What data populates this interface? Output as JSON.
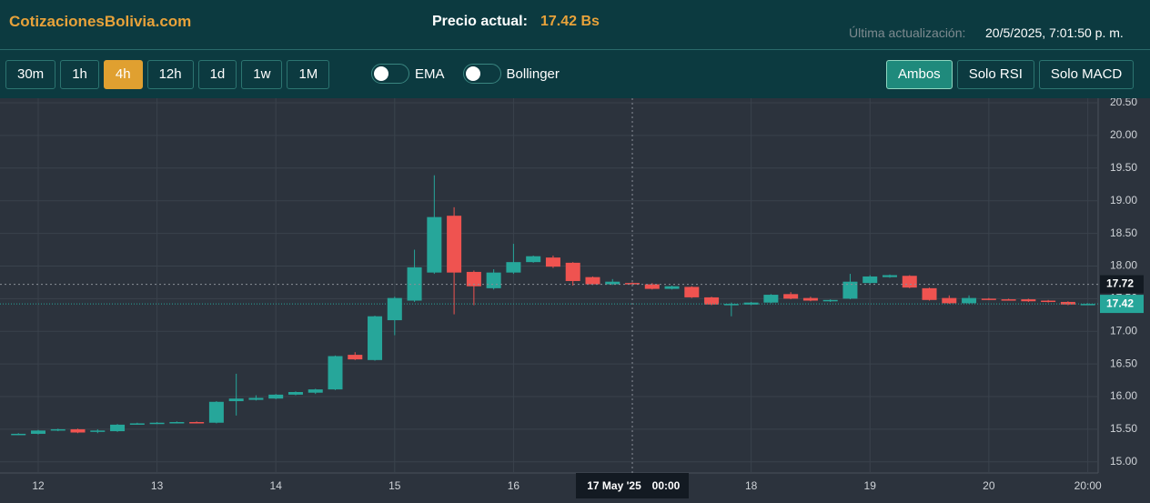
{
  "header": {
    "brand": "CotizacionesBolivia.com",
    "price_label": "Precio actual:",
    "price": "17.42 Bs",
    "update_label": "Última actualización:",
    "update_value": "20/5/2025, 7:01:50 p. m."
  },
  "toolbar": {
    "intervals": [
      "30m",
      "1h",
      "4h",
      "12h",
      "1d",
      "1w",
      "1M"
    ],
    "active_interval": "4h",
    "toggles": [
      "EMA",
      "Bollinger"
    ],
    "views": [
      "Ambos",
      "Solo RSI",
      "Solo MACD"
    ],
    "active_view": "Ambos"
  },
  "chart_data": {
    "type": "candlestick",
    "up_color": "#26a69a",
    "down_color": "#ef5350",
    "grid": true,
    "x": [
      "2025-05-11 20:00",
      "2025-05-12 00:00",
      "2025-05-12 04:00",
      "2025-05-12 08:00",
      "2025-05-12 12:00",
      "2025-05-12 16:00",
      "2025-05-12 20:00",
      "2025-05-13 00:00",
      "2025-05-13 04:00",
      "2025-05-13 08:00",
      "2025-05-13 12:00",
      "2025-05-13 16:00",
      "2025-05-13 20:00",
      "2025-05-14 00:00",
      "2025-05-14 04:00",
      "2025-05-14 08:00",
      "2025-05-14 12:00",
      "2025-05-14 16:00",
      "2025-05-14 20:00",
      "2025-05-15 00:00",
      "2025-05-15 04:00",
      "2025-05-15 08:00",
      "2025-05-15 12:00",
      "2025-05-15 16:00",
      "2025-05-15 20:00",
      "2025-05-16 00:00",
      "2025-05-16 04:00",
      "2025-05-16 08:00",
      "2025-05-16 12:00",
      "2025-05-16 16:00",
      "2025-05-16 20:00",
      "2025-05-17 00:00",
      "2025-05-17 04:00",
      "2025-05-17 08:00",
      "2025-05-17 12:00",
      "2025-05-17 16:00",
      "2025-05-17 20:00",
      "2025-05-18 00:00",
      "2025-05-18 04:00",
      "2025-05-18 08:00",
      "2025-05-18 12:00",
      "2025-05-18 16:00",
      "2025-05-18 20:00",
      "2025-05-19 00:00",
      "2025-05-19 04:00",
      "2025-05-19 08:00",
      "2025-05-19 12:00",
      "2025-05-19 16:00",
      "2025-05-19 20:00",
      "2025-05-20 00:00",
      "2025-05-20 04:00",
      "2025-05-20 08:00",
      "2025-05-20 12:00",
      "2025-05-20 16:00",
      "2025-05-20 20:00"
    ],
    "open": [
      15.42,
      15.43,
      15.48,
      15.5,
      15.46,
      15.47,
      15.58,
      15.59,
      15.6,
      15.61,
      15.6,
      15.93,
      15.95,
      15.97,
      16.03,
      16.06,
      16.11,
      16.64,
      16.56,
      17.17,
      17.47,
      17.9,
      18.77,
      17.91,
      17.66,
      17.9,
      18.06,
      18.13,
      18.05,
      17.83,
      17.72,
      17.74,
      17.72,
      17.65,
      17.68,
      17.52,
      17.4,
      17.41,
      17.44,
      17.57,
      17.51,
      17.47,
      17.5,
      17.74,
      17.83,
      17.85,
      17.66,
      17.51,
      17.43,
      17.5,
      17.49,
      17.49,
      17.47,
      17.45,
      17.41
    ],
    "high": [
      15.44,
      15.49,
      15.51,
      15.51,
      15.5,
      15.58,
      15.6,
      15.61,
      15.62,
      15.62,
      15.93,
      16.35,
      16.02,
      16.04,
      16.08,
      16.12,
      16.63,
      16.68,
      17.24,
      17.53,
      18.25,
      19.39,
      18.9,
      17.93,
      17.95,
      18.34,
      18.16,
      18.16,
      18.06,
      17.84,
      17.8,
      17.75,
      17.74,
      17.7,
      17.69,
      17.53,
      17.44,
      17.45,
      17.57,
      17.6,
      17.53,
      17.49,
      17.88,
      17.86,
      17.87,
      17.86,
      17.67,
      17.55,
      17.55,
      17.51,
      17.5,
      17.5,
      17.48,
      17.46,
      17.43
    ],
    "low": [
      15.41,
      15.42,
      15.47,
      15.44,
      15.44,
      15.46,
      15.57,
      15.58,
      15.59,
      15.59,
      15.59,
      15.71,
      15.94,
      15.96,
      16.02,
      16.04,
      16.1,
      16.56,
      16.55,
      16.94,
      17.45,
      17.88,
      17.26,
      17.4,
      17.64,
      17.88,
      18.05,
      17.97,
      17.7,
      17.71,
      17.71,
      17.72,
      17.64,
      17.64,
      17.51,
      17.4,
      17.23,
      17.4,
      17.43,
      17.49,
      17.46,
      17.45,
      17.49,
      17.73,
      17.82,
      17.66,
      17.47,
      17.42,
      17.42,
      17.48,
      17.47,
      17.45,
      17.44,
      17.4,
      17.41
    ],
    "close": [
      15.43,
      15.48,
      15.5,
      15.45,
      15.48,
      15.57,
      15.59,
      15.6,
      15.61,
      15.6,
      15.92,
      15.97,
      15.98,
      16.03,
      16.07,
      16.11,
      16.62,
      16.57,
      17.23,
      17.51,
      17.98,
      18.75,
      17.9,
      17.69,
      17.9,
      18.06,
      18.15,
      17.99,
      17.77,
      17.72,
      17.76,
      17.73,
      17.65,
      17.69,
      17.52,
      17.41,
      17.42,
      17.44,
      17.56,
      17.5,
      17.47,
      17.48,
      17.76,
      17.84,
      17.86,
      17.67,
      17.48,
      17.43,
      17.51,
      17.49,
      17.48,
      17.46,
      17.45,
      17.41,
      17.42
    ],
    "xlim": [
      "2025-05-11 16:17",
      "2025-05-20 22:05"
    ],
    "xticks": [
      {
        "value": "2025-05-12 00:00",
        "label": "12"
      },
      {
        "value": "2025-05-13 00:00",
        "label": "13"
      },
      {
        "value": "2025-05-14 00:00",
        "label": "14"
      },
      {
        "value": "2025-05-15 00:00",
        "label": "15"
      },
      {
        "value": "2025-05-16 00:00",
        "label": "16"
      },
      {
        "value": "2025-05-18 00:00",
        "label": "18"
      },
      {
        "value": "2025-05-19 00:00",
        "label": "19"
      },
      {
        "value": "2025-05-20 00:00",
        "label": "20"
      },
      {
        "value": "2025-05-20 20:00",
        "label": "20:00"
      }
    ],
    "ylim": [
      14.83,
      20.57
    ],
    "yticks": [
      {
        "value": 15,
        "label": "15.00"
      },
      {
        "value": 15.5,
        "label": "15.50"
      },
      {
        "value": 16,
        "label": "16.00"
      },
      {
        "value": 16.5,
        "label": "16.50"
      },
      {
        "value": 17,
        "label": "17.00"
      },
      {
        "value": 17.5,
        "label": "17.50"
      },
      {
        "value": 18,
        "label": "18.00"
      },
      {
        "value": 18.5,
        "label": "18.50"
      },
      {
        "value": 19,
        "label": "19.00"
      },
      {
        "value": 19.5,
        "label": "19.50"
      },
      {
        "value": 20,
        "label": "20.00"
      },
      {
        "value": 20.5,
        "label": "20.50"
      }
    ],
    "current_price": {
      "value": 17.42,
      "label": "17.42"
    },
    "crosshair": {
      "x": "2025-05-17 00:00",
      "x_label": "17 May '25",
      "x_time": "00:00",
      "y": {
        "value": 17.72,
        "label": "17.72"
      }
    }
  }
}
